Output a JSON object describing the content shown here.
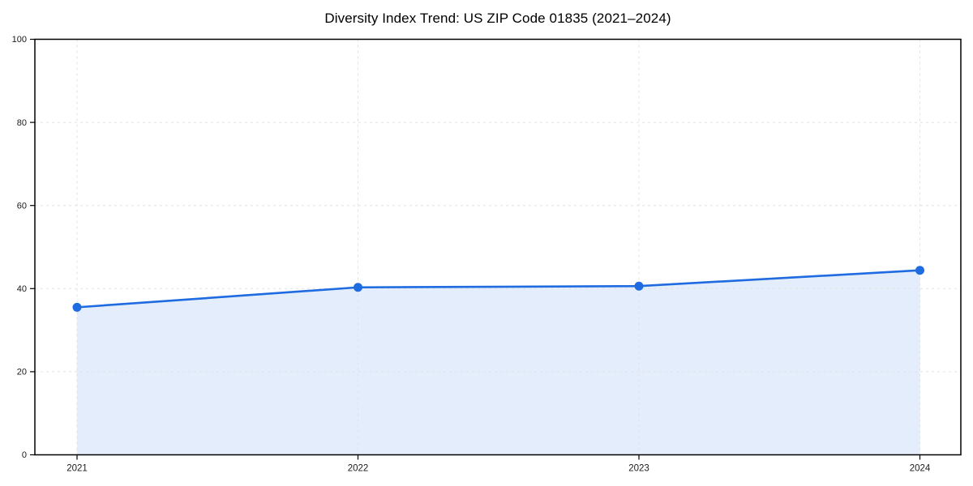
{
  "chart": {
    "title": "Diversity Index Trend: US ZIP Code 01835 (2021–2024)"
  },
  "chart_data": {
    "type": "line",
    "title": "Diversity Index Trend: US ZIP Code 01835 (2021–2024)",
    "categories": [
      "2021",
      "2022",
      "2023",
      "2024"
    ],
    "series": [
      {
        "name": "Diversity Index",
        "values": [
          35.5,
          40.3,
          40.6,
          44.4
        ]
      }
    ],
    "xlabel": "",
    "ylabel": "",
    "ylim": [
      0,
      100
    ],
    "yticks": [
      0,
      20,
      40,
      60,
      80,
      100
    ],
    "ytick_labels": [
      "0",
      "20",
      "40",
      "60",
      "80",
      "100"
    ],
    "grid": true,
    "grid_style": "dashed",
    "legend_position": "none",
    "area_fill": true,
    "colors": {
      "line": "#1f6be0",
      "marker": "#1f6be0",
      "fill": "#1f6be0",
      "grid": "#e1e1e1",
      "spine": "#000000",
      "tick": "#000000",
      "tick_label": "#1a1a1a",
      "title": "#000000",
      "background": "#ffffff"
    },
    "fill_opacity": 0.12,
    "marker_shape": "circle"
  }
}
